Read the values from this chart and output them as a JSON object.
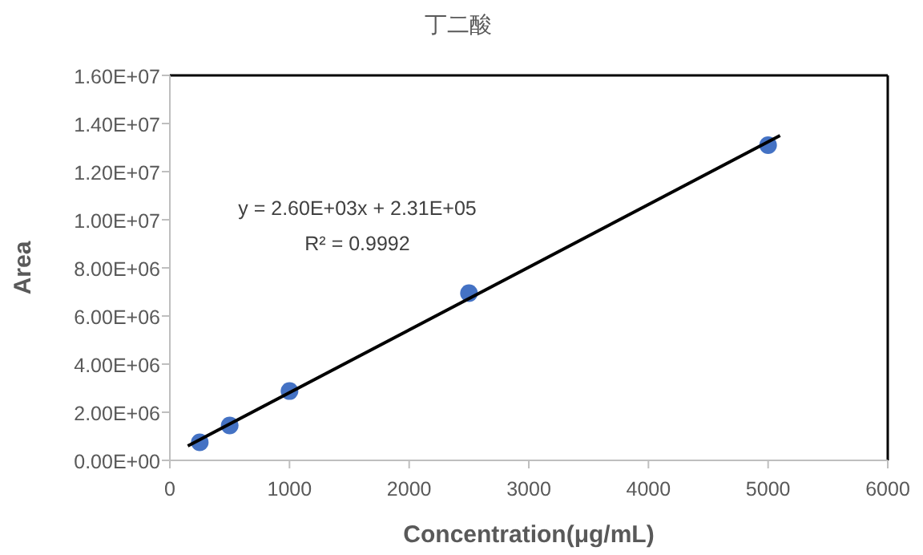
{
  "chart_data": {
    "type": "scatter",
    "title": "丁二酸",
    "xlabel": "Concentration(μg/mL)",
    "ylabel": "Area",
    "xlim": [
      0,
      6000
    ],
    "xticks": [
      0,
      1000,
      2000,
      3000,
      4000,
      5000,
      6000
    ],
    "ylim": [
      0,
      16000000
    ],
    "yticks": [
      {
        "value": 0,
        "label": "0.00E+00"
      },
      {
        "value": 2000000,
        "label": "2.00E+06"
      },
      {
        "value": 4000000,
        "label": "4.00E+06"
      },
      {
        "value": 6000000,
        "label": "6.00E+06"
      },
      {
        "value": 8000000,
        "label": "8.00E+06"
      },
      {
        "value": 10000000,
        "label": "1.00E+07"
      },
      {
        "value": 12000000,
        "label": "1.20E+07"
      },
      {
        "value": 14000000,
        "label": "1.40E+07"
      },
      {
        "value": 16000000,
        "label": "1.60E+07"
      }
    ],
    "grid": false,
    "marker": "circle",
    "series": [
      {
        "color": "#4472c4",
        "x": [
          250,
          500,
          1000,
          2500,
          5000
        ],
        "values": [
          750000,
          1450000,
          2880000,
          6950000,
          13100000
        ]
      },
      {
        "type": "line",
        "color": "#000000",
        "line_style": "solid",
        "marker": "none",
        "x": [
          150,
          5100
        ],
        "values": [
          600000,
          13500000
        ]
      }
    ],
    "annotations": [
      "y = 2.60E+03x + 2.31E+05",
      "R² = 0.9992"
    ]
  }
}
